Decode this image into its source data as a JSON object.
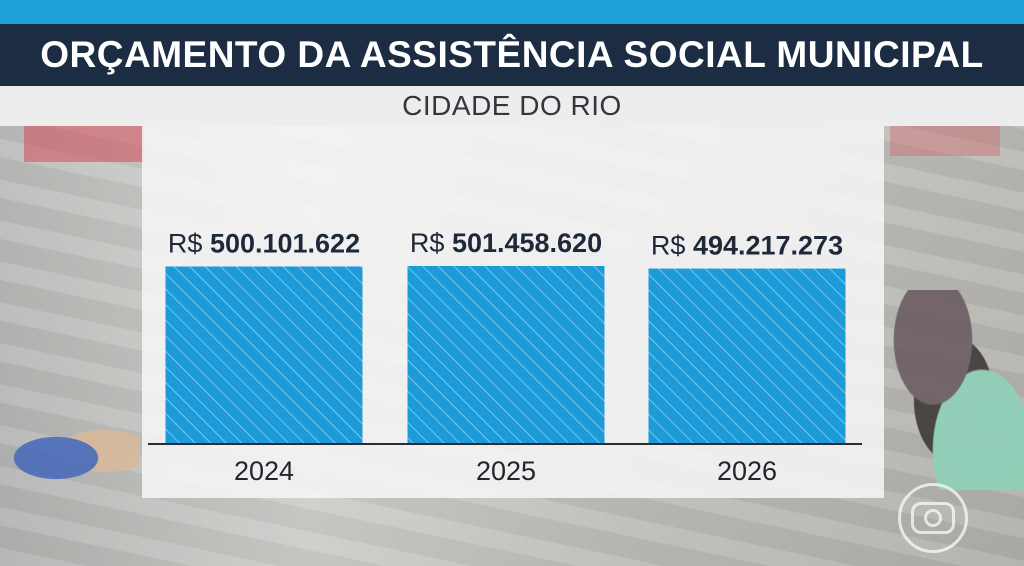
{
  "chart_data": {
    "type": "bar",
    "title": "ORÇAMENTO DA ASSISTÊNCIA SOCIAL MUNICIPAL",
    "subtitle": "CIDADE DO RIO",
    "categories": [
      "2024",
      "2025",
      "2026"
    ],
    "values": [
      500101622,
      501458620,
      494217273
    ],
    "value_prefix": "R$",
    "value_labels": [
      "500.101.622",
      "501.458.620",
      "494.217.273"
    ],
    "bar_color": "#1c9bd8",
    "hatch_color": "#a9dcf3",
    "xlabel": "",
    "ylabel": "",
    "grid": false
  }
}
